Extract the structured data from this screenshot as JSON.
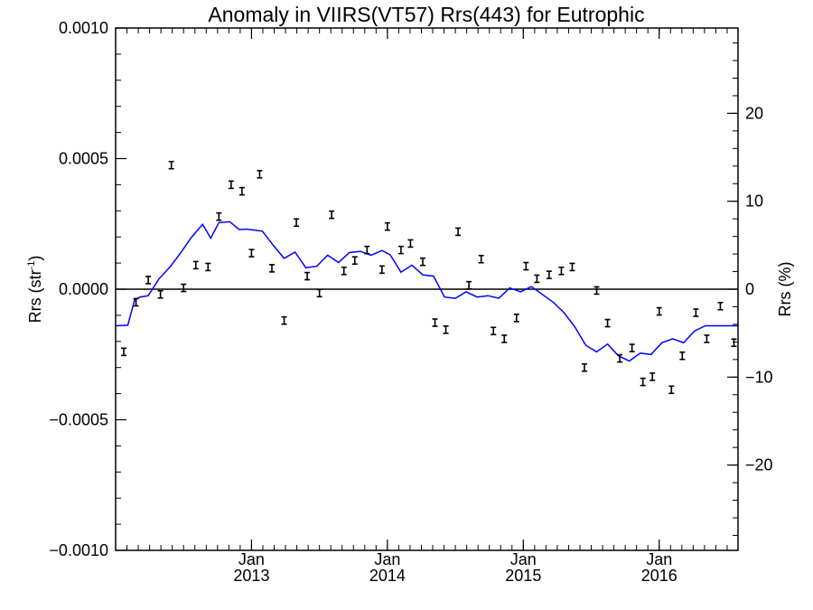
{
  "chart_data": {
    "type": "scatter",
    "title": "Anomaly in VIIRS(VT57) Rrs(443) for Eutrophic",
    "ylabel_left_base": "Rrs (str",
    "ylabel_left_sup": "-1",
    "ylabel_left_end": ")",
    "ylabel_right": "Rrs (%)",
    "xlim": [
      2012.0,
      2016.58
    ],
    "ylim_left": [
      -0.001,
      0.001
    ],
    "ylim_right": [
      -29.7,
      29.7
    ],
    "left_ticks": [
      {
        "value": 0.001,
        "label": "0.0010"
      },
      {
        "value": 0.0005,
        "label": "0.0005"
      },
      {
        "value": 0.0,
        "label": "0.0000"
      },
      {
        "value": -0.0005,
        "label": "−0.0005"
      },
      {
        "value": -0.001,
        "label": "−0.0010"
      }
    ],
    "right_ticks": [
      {
        "value": 20,
        "label": "20"
      },
      {
        "value": 10,
        "label": "10"
      },
      {
        "value": 0,
        "label": "0"
      },
      {
        "value": -10,
        "label": "−10"
      },
      {
        "value": -20,
        "label": "−20"
      }
    ],
    "x_ticks": [
      {
        "value": 2013.0,
        "month": "Jan",
        "year": "2013"
      },
      {
        "value": 2014.0,
        "month": "Jan",
        "year": "2014"
      },
      {
        "value": 2015.0,
        "month": "Jan",
        "year": "2015"
      },
      {
        "value": 2016.0,
        "month": "Jan",
        "year": "2016"
      }
    ],
    "zero_line": 0.0,
    "series": [
      {
        "kind": "errorbar-points",
        "color": "#000000",
        "points": [
          [
            2012.06,
            -0.00024
          ],
          [
            2012.15,
            -5e-05
          ],
          [
            2012.24,
            3.5e-05
          ],
          [
            2012.33,
            -2e-05
          ],
          [
            2012.41,
            0.000475
          ],
          [
            2012.5,
            5e-06
          ],
          [
            2012.59,
            9.2e-05
          ],
          [
            2012.68,
            8.5e-05
          ],
          [
            2012.76,
            0.000278
          ],
          [
            2012.85,
            0.0004
          ],
          [
            2012.93,
            0.000375
          ],
          [
            2013.0,
            0.000138
          ],
          [
            2013.06,
            0.00044
          ],
          [
            2013.15,
            8e-05
          ],
          [
            2013.24,
            -0.00012
          ],
          [
            2013.33,
            0.000255
          ],
          [
            2013.41,
            5e-05
          ],
          [
            2013.5,
            -1.5e-05
          ],
          [
            2013.59,
            0.000285
          ],
          [
            2013.68,
            7e-05
          ],
          [
            2013.76,
            0.00011
          ],
          [
            2013.85,
            0.00015
          ],
          [
            2013.96,
            7.5e-05
          ],
          [
            2014.0,
            0.00024
          ],
          [
            2014.1,
            0.00015
          ],
          [
            2014.17,
            0.000175
          ],
          [
            2014.26,
            0.000105
          ],
          [
            2014.35,
            -0.000128
          ],
          [
            2014.43,
            -0.000155
          ],
          [
            2014.52,
            0.00022
          ],
          [
            2014.6,
            1.5e-05
          ],
          [
            2014.69,
            0.000115
          ],
          [
            2014.78,
            -0.00016
          ],
          [
            2014.86,
            -0.00019
          ],
          [
            2014.95,
            -0.00011
          ],
          [
            2015.02,
            8.8e-05
          ],
          [
            2015.1,
            4e-05
          ],
          [
            2015.19,
            5.5e-05
          ],
          [
            2015.28,
            7e-05
          ],
          [
            2015.36,
            8.5e-05
          ],
          [
            2015.45,
            -0.0003
          ],
          [
            2015.54,
            -5e-06
          ],
          [
            2015.62,
            -0.00013
          ],
          [
            2015.71,
            -0.000265
          ],
          [
            2015.8,
            -0.000225
          ],
          [
            2015.88,
            -0.000355
          ],
          [
            2015.95,
            -0.000335
          ],
          [
            2016.0,
            -8.5e-05
          ],
          [
            2016.09,
            -0.000385
          ],
          [
            2016.17,
            -0.000255
          ],
          [
            2016.27,
            -9e-05
          ],
          [
            2016.35,
            -0.00019
          ],
          [
            2016.45,
            -6.5e-05
          ],
          [
            2016.55,
            -0.000205
          ]
        ]
      },
      {
        "kind": "line",
        "color": "#0000ff",
        "points": [
          [
            2012.0,
            -0.00014
          ],
          [
            2012.09,
            -0.000138
          ],
          [
            2012.14,
            -4e-05
          ],
          [
            2012.18,
            -3e-05
          ],
          [
            2012.24,
            -2.5e-05
          ],
          [
            2012.32,
            4e-05
          ],
          [
            2012.4,
            8.5e-05
          ],
          [
            2012.48,
            0.00014
          ],
          [
            2012.56,
            0.0002
          ],
          [
            2012.64,
            0.000248
          ],
          [
            2012.7,
            0.000195
          ],
          [
            2012.76,
            0.000255
          ],
          [
            2012.84,
            0.000258
          ],
          [
            2012.91,
            0.000228
          ],
          [
            2012.96,
            0.00023
          ],
          [
            2013.08,
            0.000222
          ],
          [
            2013.16,
            0.000168
          ],
          [
            2013.24,
            0.000118
          ],
          [
            2013.32,
            0.000142
          ],
          [
            2013.4,
            8.2e-05
          ],
          [
            2013.48,
            8.8e-05
          ],
          [
            2013.56,
            0.00013
          ],
          [
            2013.64,
            0.000102
          ],
          [
            2013.72,
            0.00014
          ],
          [
            2013.8,
            0.000145
          ],
          [
            2013.88,
            0.00013
          ],
          [
            2013.96,
            0.000148
          ],
          [
            2014.02,
            0.000132
          ],
          [
            2014.1,
            6.5e-05
          ],
          [
            2014.18,
            9.2e-05
          ],
          [
            2014.26,
            5.5e-05
          ],
          [
            2014.34,
            5e-05
          ],
          [
            2014.42,
            -3e-05
          ],
          [
            2014.5,
            -3.5e-05
          ],
          [
            2014.58,
            -1e-05
          ],
          [
            2014.66,
            -3e-05
          ],
          [
            2014.74,
            -2.5e-05
          ],
          [
            2014.82,
            -3.5e-05
          ],
          [
            2014.9,
            5e-06
          ],
          [
            2014.98,
            -1e-05
          ],
          [
            2015.06,
            1e-05
          ],
          [
            2015.14,
            -2e-05
          ],
          [
            2015.22,
            -5e-05
          ],
          [
            2015.3,
            -9e-05
          ],
          [
            2015.38,
            -0.000145
          ],
          [
            2015.46,
            -0.000215
          ],
          [
            2015.54,
            -0.00024
          ],
          [
            2015.62,
            -0.00021
          ],
          [
            2015.7,
            -0.000255
          ],
          [
            2015.78,
            -0.000275
          ],
          [
            2015.86,
            -0.000245
          ],
          [
            2015.94,
            -0.00025
          ],
          [
            2016.02,
            -0.000205
          ],
          [
            2016.1,
            -0.00019
          ],
          [
            2016.18,
            -0.000205
          ],
          [
            2016.26,
            -0.00016
          ],
          [
            2016.34,
            -0.00014
          ],
          [
            2016.42,
            -0.00014
          ],
          [
            2016.5,
            -0.00014
          ],
          [
            2016.58,
            -0.00014
          ]
        ]
      }
    ]
  }
}
